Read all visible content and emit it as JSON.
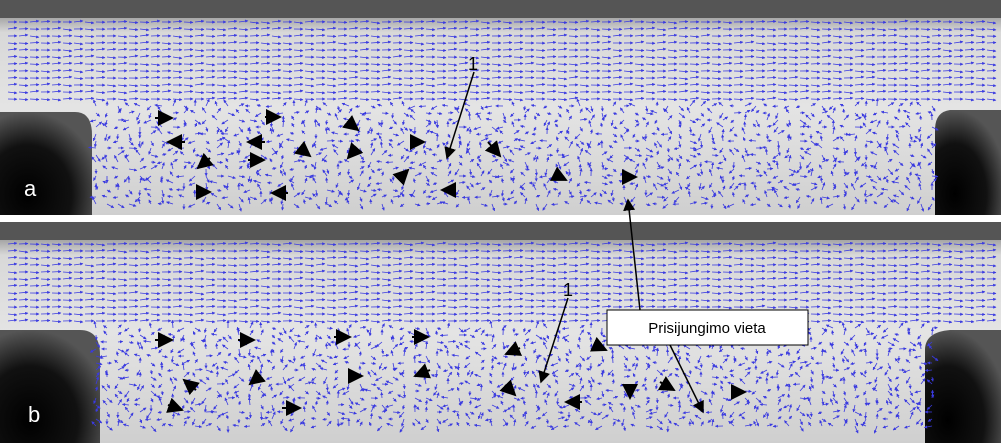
{
  "panels": [
    {
      "label": "a",
      "marker": "1"
    },
    {
      "label": "b",
      "marker": "1"
    }
  ],
  "callout": "Prisijungimo vieta"
}
